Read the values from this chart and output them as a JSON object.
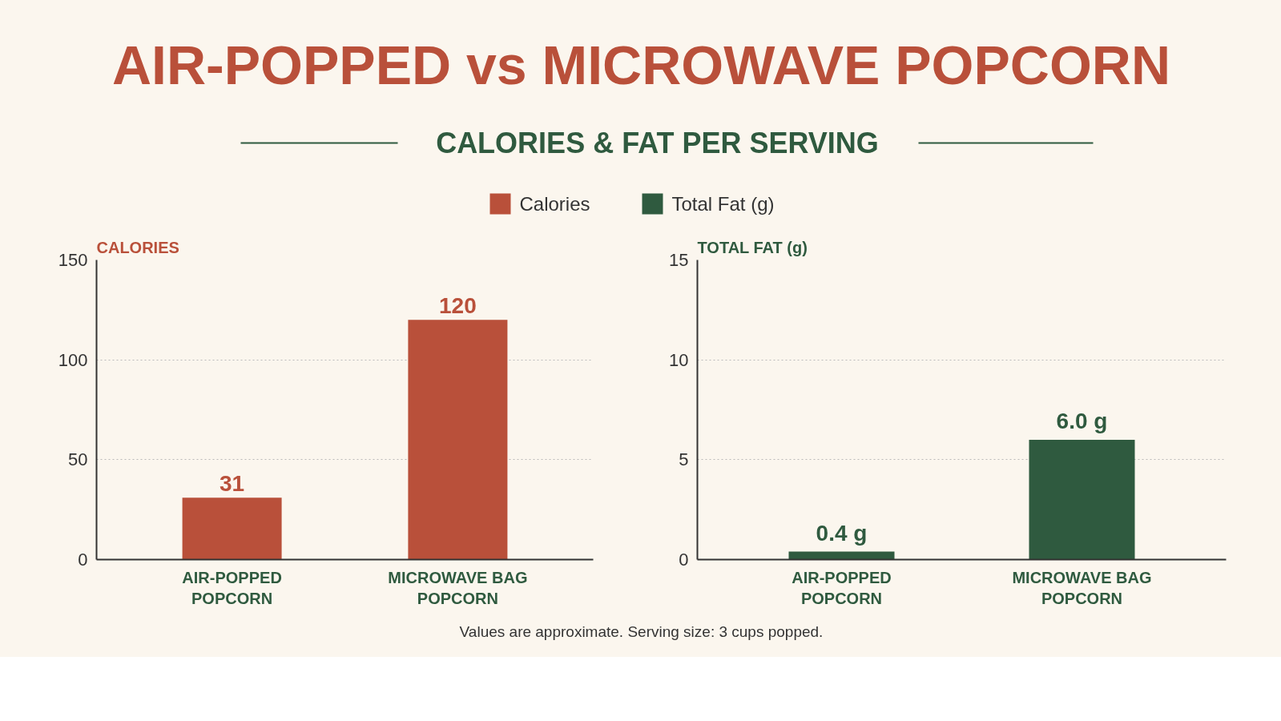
{
  "chart_data": [
    {
      "type": "bar",
      "title": "AIR-POPPED vs MICROWAVE POPCORN",
      "subtitle": "CALORIES & FAT PER SERVING",
      "ylabel": "CALORIES",
      "categories": [
        "AIR-POPPED POPCORN",
        "MICROWAVE BAG POPCORN"
      ],
      "series": [
        {
          "name": "Calories",
          "color": "#b9503a",
          "values": [
            31,
            120
          ]
        }
      ],
      "ylim": [
        0,
        150
      ],
      "yticks": [
        0,
        50,
        100,
        150
      ],
      "grid": "y",
      "legend": "top",
      "data_labels": true,
      "annotations": [
        "Values are approximate. Serving size: 3 cups popped."
      ]
    },
    {
      "type": "bar",
      "ylabel": "TOTAL FAT (g)",
      "categories": [
        "AIR-POPPED POPCORN",
        "MICROWAVE BAG POPCORN"
      ],
      "series": [
        {
          "name": "Total Fat (g)",
          "color": "#2f5a3f",
          "values": [
            0.4,
            6.0
          ],
          "value_labels": [
            "0.4 g",
            "6.0 g"
          ]
        }
      ],
      "ylim": [
        0,
        15
      ],
      "yticks": [
        0,
        5,
        10,
        15
      ],
      "grid": "y",
      "legend": "top"
    }
  ]
}
